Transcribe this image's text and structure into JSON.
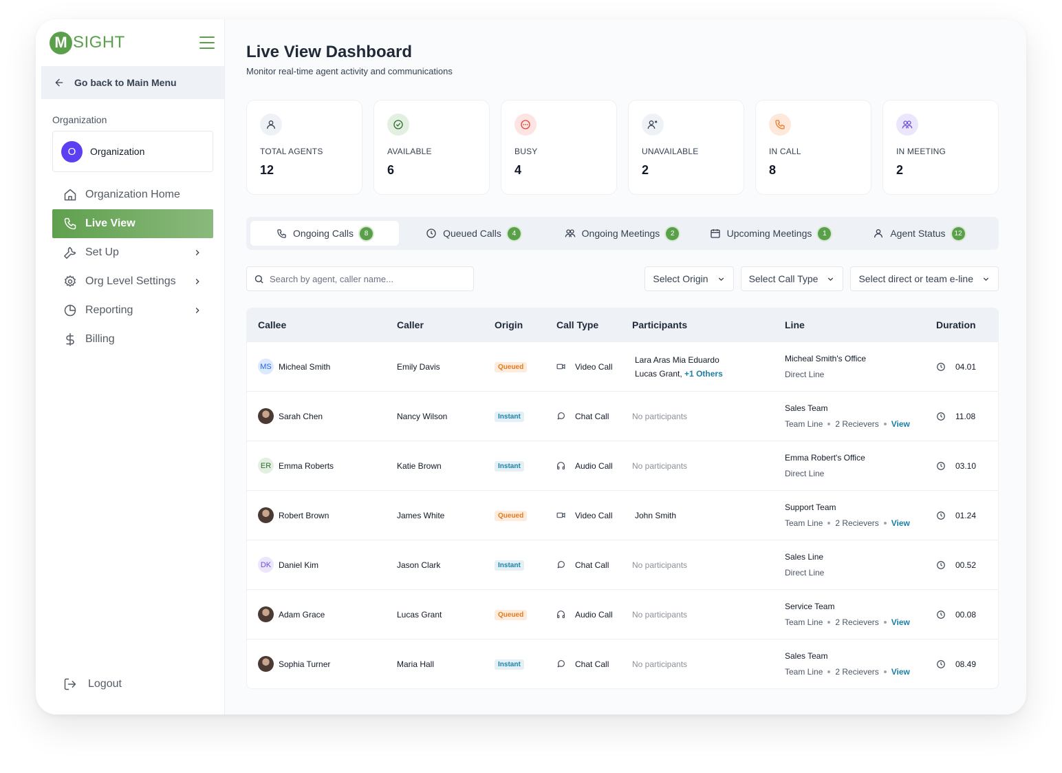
{
  "brand": {
    "logo_letter": "M",
    "logo_text": "SIGHT"
  },
  "sidebar": {
    "back_label": "Go back to Main Menu",
    "org_section_label": "Organization",
    "org_avatar_letter": "O",
    "org_name": "Organization",
    "items": [
      {
        "label": "Organization Home",
        "icon": "home-icon"
      },
      {
        "label": "Live View",
        "icon": "phone-icon",
        "active": true
      },
      {
        "label": "Set Up",
        "icon": "wrench-icon"
      },
      {
        "label": "Org Level Settings",
        "icon": "gear-icon"
      },
      {
        "label": "Reporting",
        "icon": "pie-chart-icon"
      },
      {
        "label": "Billing",
        "icon": "dollar-icon"
      }
    ],
    "logout_label": "Logout"
  },
  "header": {
    "title": "Live View Dashboard",
    "subtitle": "Monitor real-time agent activity and communications"
  },
  "stats": [
    {
      "label": "TOTAL AGENTS",
      "value": "12",
      "icon": "user-icon",
      "color": "#374151",
      "bg": "#eef1f6"
    },
    {
      "label": "AVAILABLE",
      "value": "6",
      "icon": "check-circle-icon",
      "color": "#2f6b2f",
      "bg": "#e3efe0"
    },
    {
      "label": "BUSY",
      "value": "4",
      "icon": "busy-icon",
      "color": "#e0453a",
      "bg": "#fde4e2"
    },
    {
      "label": "UNAVAILABLE",
      "value": "2",
      "icon": "user-x-icon",
      "color": "#374151",
      "bg": "#eef1f6"
    },
    {
      "label": "IN CALL",
      "value": "8",
      "icon": "phone-icon",
      "color": "#f07a2a",
      "bg": "#fde8da"
    },
    {
      "label": "IN MEETING",
      "value": "2",
      "icon": "users-icon",
      "color": "#6d4fd8",
      "bg": "#ebe6fb"
    }
  ],
  "tabs": [
    {
      "label": "Ongoing Calls",
      "count": "8",
      "icon": "phone-icon",
      "active": true
    },
    {
      "label": "Queued Calls",
      "count": "4",
      "icon": "clock-icon"
    },
    {
      "label": "Ongoing Meetings",
      "count": "2",
      "icon": "users-icon"
    },
    {
      "label": "Upcoming Meetings",
      "count": "1",
      "icon": "calendar-icon"
    },
    {
      "label": "Agent Status",
      "count": "12",
      "icon": "user-icon"
    }
  ],
  "filters": {
    "search_placeholder": "Search by agent, caller name...",
    "origin": "Select Origin",
    "call_type": "Select Call Type",
    "line": "Select direct or team e-line"
  },
  "table": {
    "headers": [
      "Callee",
      "Caller",
      "Origin",
      "Call Type",
      "Participants",
      "Line",
      "Duration"
    ],
    "rows": [
      {
        "callee": "Micheal Smith",
        "initials": "MS",
        "avatar_bg": "#dbeafe",
        "avatar_fg": "#2563eb",
        "caller": "Emily Davis",
        "origin": "Queued",
        "call_type": "Video Call",
        "call_icon": "video-icon",
        "participants": "Lara Aras Mia Eduardo",
        "participants_2": "Lucas Grant,",
        "participants_more": "+1 Others",
        "line_title": "Micheal Smith's Office",
        "line_kind": "Direct Line",
        "duration": "04.01"
      },
      {
        "callee": "Sarah Chen",
        "initials": "",
        "avatar_bg": "",
        "avatar_fg": "",
        "caller": "Nancy Wilson",
        "origin": "Instant",
        "call_type": "Chat Call",
        "call_icon": "chat-icon",
        "participants": "No participants",
        "line_title": "Sales Team",
        "line_kind": "Team Line",
        "receivers": "2 Recievers",
        "view": "View",
        "duration": "11.08"
      },
      {
        "callee": "Emma Roberts",
        "initials": "ER",
        "avatar_bg": "#e3efe0",
        "avatar_fg": "#2f6b2f",
        "caller": "Katie Brown",
        "origin": "Instant",
        "call_type": "Audio Call",
        "call_icon": "headphones-icon",
        "participants": "No participants",
        "line_title": "Emma Robert's Office",
        "line_kind": "Direct Line",
        "duration": "03.10"
      },
      {
        "callee": "Robert Brown",
        "initials": "",
        "avatar_bg": "",
        "avatar_fg": "",
        "caller": "James White",
        "origin": "Queued",
        "call_type": "Video Call",
        "call_icon": "video-icon",
        "participants": "John Smith",
        "line_title": "Support Team",
        "line_kind": "Team Line",
        "receivers": "2 Recievers",
        "view": "View",
        "duration": "01.24"
      },
      {
        "callee": "Daniel Kim",
        "initials": "DK",
        "avatar_bg": "#ebe6fb",
        "avatar_fg": "#6d4fd8",
        "caller": "Jason Clark",
        "origin": "Instant",
        "call_type": "Chat Call",
        "call_icon": "chat-icon",
        "participants": "No participants",
        "line_title": "Sales Line",
        "line_kind": "Direct Line",
        "duration": "00.52"
      },
      {
        "callee": "Adam Grace",
        "initials": "",
        "avatar_bg": "",
        "avatar_fg": "",
        "caller": "Lucas Grant",
        "origin": "Queued",
        "call_type": "Audio Call",
        "call_icon": "headphones-icon",
        "participants": "No participants",
        "line_title": "Service Team",
        "line_kind": "Team Line",
        "receivers": "2 Recievers",
        "view": "View",
        "duration": "00.08"
      },
      {
        "callee": "Sophia Turner",
        "initials": "",
        "avatar_bg": "",
        "avatar_fg": "",
        "caller": "Maria Hall",
        "origin": "Instant",
        "call_type": "Chat Call",
        "call_icon": "chat-icon",
        "participants": "No participants",
        "line_title": "Sales Team",
        "line_kind": "Team Line",
        "receivers": "2 Recievers",
        "view": "View",
        "duration": "08.49"
      }
    ]
  },
  "colors": {
    "accent": "#5aa04b",
    "link": "#1b7fa8",
    "queued": "#e07b21",
    "instant": "#1b7fa8"
  }
}
